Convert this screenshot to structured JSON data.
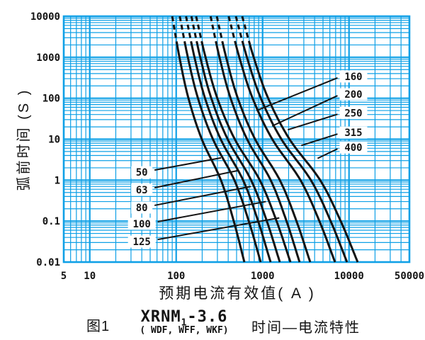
{
  "figure": {
    "number": "图1",
    "model_prefix": "XRNM",
    "model_subscript": "1",
    "model_suffix": "-3.6",
    "variants": "( WDF, WFF, WKF)",
    "caption": "时间—电流特性"
  },
  "chart_data": {
    "type": "line",
    "title": "XRNM1-3.6 ( WDF, WFF, WKF) 时间—电流特性",
    "xlabel": "预期电流有效值( A )",
    "ylabel": "弧前时间 (S )",
    "x_scale": "log",
    "y_scale": "log",
    "xlim": [
      5,
      50000
    ],
    "ylim": [
      0.01,
      10000
    ],
    "x_tick_labels": [
      "5",
      "10",
      "100",
      "1000",
      "10000",
      "50000"
    ],
    "y_tick_labels": [
      "10000",
      "1000",
      "100",
      "10",
      "1",
      "0.1",
      "0.01"
    ],
    "grid": "log-log with minor decade lines",
    "grid_color": "#0fa0e6",
    "curve_color": "#141414",
    "dashed_above_s": 2000,
    "shape_profile": {
      "v": [
        0,
        0.1667,
        0.3333,
        0.5,
        0.6667,
        0.8333,
        1
      ],
      "g": [
        0,
        0.1,
        0.225,
        0.41,
        0.675,
        0.853,
        1
      ]
    },
    "series": [
      {
        "name": "50",
        "rating_A": 50,
        "side": "left",
        "points": [
          [
            10000,
            90
          ],
          [
            100,
            139
          ],
          [
            1,
            329
          ],
          [
            0.01,
            615
          ]
        ],
        "label_at": [
          40,
          1.56
        ],
        "leader_to": [
          330,
          3.5
        ]
      },
      {
        "name": "63",
        "rating_A": 63,
        "side": "left",
        "points": [
          [
            10000,
            110
          ],
          [
            100,
            179
          ],
          [
            1,
            471
          ],
          [
            0.01,
            950
          ]
        ],
        "label_at": [
          40,
          0.58
        ],
        "leader_to": [
          510,
          1.7
        ]
      },
      {
        "name": "80",
        "rating_A": 80,
        "side": "left",
        "points": [
          [
            10000,
            130
          ],
          [
            100,
            216
          ],
          [
            1,
            594
          ],
          [
            0.01,
            1236
          ]
        ],
        "label_at": [
          40,
          0.215
        ],
        "leader_to": [
          730,
          0.7
        ]
      },
      {
        "name": "100",
        "rating_A": 100,
        "side": "left",
        "points": [
          [
            10000,
            150
          ],
          [
            100,
            255
          ],
          [
            1,
            736
          ],
          [
            0.01,
            1582
          ]
        ],
        "label_at": [
          40,
          0.086
        ],
        "leader_to": [
          1090,
          0.3
        ]
      },
      {
        "name": "125",
        "rating_A": 125,
        "side": "left",
        "points": [
          [
            10000,
            170
          ],
          [
            100,
            299
          ],
          [
            1,
            928
          ],
          [
            0.01,
            2100
          ]
        ],
        "label_at": [
          40,
          0.0316
        ],
        "leader_to": [
          1560,
          0.12
        ]
      },
      {
        "name": "160",
        "rating_A": 160,
        "side": "right",
        "points": [
          [
            10000,
            250
          ],
          [
            100,
            426
          ],
          [
            1,
            1240
          ],
          [
            0.01,
            2680
          ]
        ],
        "label_at": [
          11250,
          340
        ],
        "leader_to": [
          850,
          50
        ]
      },
      {
        "name": "200",
        "rating_A": 200,
        "side": "right",
        "points": [
          [
            10000,
            295
          ],
          [
            100,
            517
          ],
          [
            1,
            1583
          ],
          [
            0.01,
            3556
          ]
        ],
        "label_at": [
          11250,
          125
        ],
        "leader_to": [
          1290,
          21
        ]
      },
      {
        "name": "250",
        "rating_A": 250,
        "side": "right",
        "points": [
          [
            10000,
            405
          ],
          [
            100,
            766
          ],
          [
            1,
            2743
          ],
          [
            0.01,
            6890
          ]
        ],
        "label_at": [
          11250,
          44
        ],
        "leader_to": [
          1960,
          17
        ]
      },
      {
        "name": "315",
        "rating_A": 315,
        "side": "right",
        "points": [
          [
            10000,
            490
          ],
          [
            100,
            954
          ],
          [
            1,
            3621
          ],
          [
            0.01,
            9480
          ]
        ],
        "label_at": [
          11250,
          14.5
        ],
        "leader_to": [
          2800,
          7
        ]
      },
      {
        "name": "400",
        "rating_A": 400,
        "side": "right",
        "points": [
          [
            10000,
            580
          ],
          [
            100,
            1160
          ],
          [
            1,
            4634
          ],
          [
            0.01,
            12600
          ]
        ],
        "label_at": [
          11250,
          6.3
        ],
        "leader_to": [
          4330,
          3.4
        ]
      }
    ]
  }
}
